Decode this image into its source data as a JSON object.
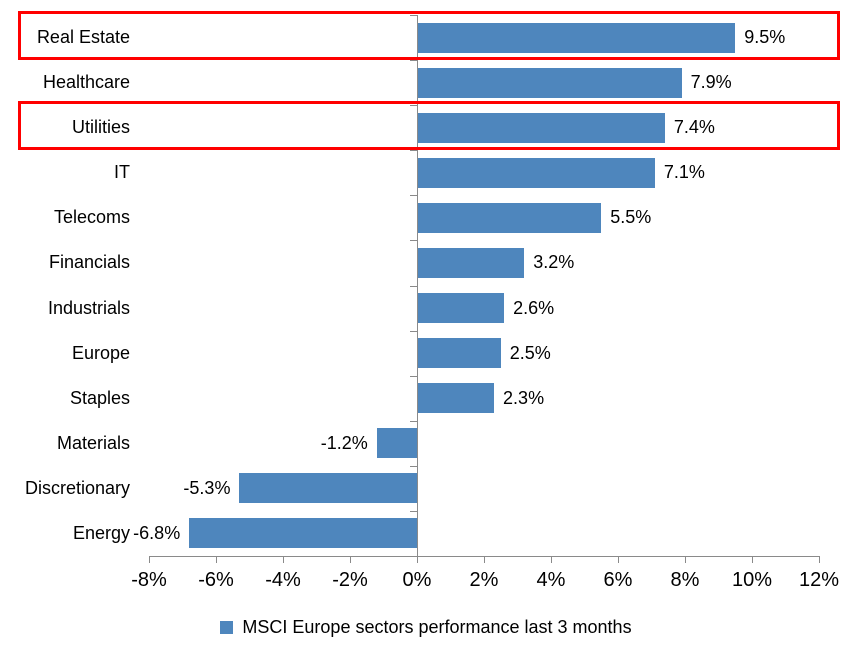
{
  "chart_data": {
    "type": "bar",
    "orientation": "horizontal",
    "title": "",
    "categories": [
      "Real Estate",
      "Healthcare",
      "Utilities",
      "IT",
      "Telecoms",
      "Financials",
      "Industrials",
      "Europe",
      "Staples",
      "Materials",
      "Discretionary",
      "Energy"
    ],
    "values": [
      9.5,
      7.9,
      7.4,
      7.1,
      5.5,
      3.2,
      2.6,
      2.5,
      2.3,
      -1.2,
      -5.3,
      -6.8
    ],
    "data_labels": [
      "9.5%",
      "7.9%",
      "7.4%",
      "7.1%",
      "5.5%",
      "3.2%",
      "2.6%",
      "2.5%",
      "2.3%",
      "-1.2%",
      "-5.3%",
      "-6.8%"
    ],
    "xlim": [
      -8,
      12
    ],
    "x_tick_values": [
      -8,
      -6,
      -4,
      -2,
      0,
      2,
      4,
      6,
      8,
      10,
      12
    ],
    "x_tick_labels": [
      "-8%",
      "-6%",
      "-4%",
      "-2%",
      "0%",
      "2%",
      "4%",
      "6%",
      "8%",
      "10%",
      "12%"
    ],
    "grid": "off",
    "legend_position": "bottom",
    "legend": "MSCI Europe sectors performance last 3 months",
    "bar_color": "#4E86BD",
    "axis_color": "#8A8A8A",
    "highlight_box_color": "#FF0000",
    "highlighted_categories": [
      "Real Estate",
      "Utilities"
    ]
  }
}
